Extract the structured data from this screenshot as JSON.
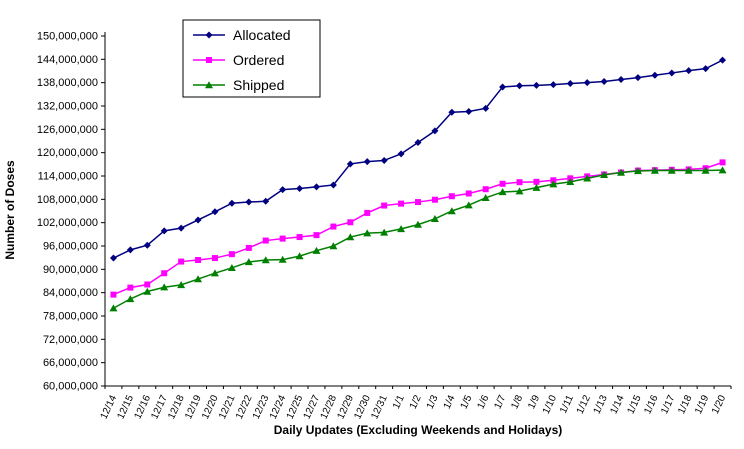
{
  "chart_data": {
    "type": "line",
    "title": "",
    "xlabel": "Daily Updates (Excluding Weekends and Holidays)",
    "ylabel": "Number of Doses",
    "ylim": [
      60000000,
      150000000
    ],
    "ytick_step": 6000000,
    "ytick_format": "comma",
    "grid": false,
    "legend_position": "inside-top-left",
    "categories": [
      "12/14",
      "12/15",
      "12/16",
      "12/17",
      "12/18",
      "12/19",
      "12/20",
      "12/21",
      "12/22",
      "12/23",
      "12/24",
      "12/25",
      "12/27",
      "12/28",
      "12/29",
      "12/30",
      "12/31",
      "1/1",
      "1/2",
      "1/3",
      "1/4",
      "1/5",
      "1/6",
      "1/7",
      "1/8",
      "1/9",
      "1/10",
      "1/11",
      "1/12",
      "1/13",
      "1/14",
      "1/15",
      "1/16",
      "1/17",
      "1/18",
      "1/19",
      "1/20"
    ],
    "series": [
      {
        "name": "Allocated",
        "color": "#000080",
        "marker": "diamond",
        "values": [
          92900000,
          95000000,
          96200000,
          99900000,
          100600000,
          102700000,
          104800000,
          107000000,
          107300000,
          107500000,
          110500000,
          110800000,
          111200000,
          111700000,
          117100000,
          117700000,
          118000000,
          119700000,
          122600000,
          125600000,
          130400000,
          130600000,
          131400000,
          136900000,
          137200000,
          137300000,
          137500000,
          137800000,
          138000000,
          138300000,
          138800000,
          139300000,
          139900000,
          140500000,
          141100000,
          141600000,
          143800000
        ]
      },
      {
        "name": "Ordered",
        "color": "#FF00FF",
        "marker": "square",
        "values": [
          83500000,
          85300000,
          86100000,
          89000000,
          92000000,
          92400000,
          92900000,
          93900000,
          95500000,
          97400000,
          97900000,
          98300000,
          98800000,
          101000000,
          102100000,
          104500000,
          106400000,
          106900000,
          107300000,
          107900000,
          108800000,
          109500000,
          110600000,
          112000000,
          112400000,
          112500000,
          112900000,
          113400000,
          113900000,
          114400000,
          114900000,
          115400000,
          115500000,
          115600000,
          115700000,
          116000000,
          117500000
        ]
      },
      {
        "name": "Shipped",
        "color": "#008000",
        "marker": "triangle",
        "values": [
          80000000,
          82400000,
          84300000,
          85400000,
          86000000,
          87500000,
          89000000,
          90400000,
          91900000,
          92400000,
          92500000,
          93400000,
          94800000,
          96000000,
          98300000,
          99300000,
          99500000,
          100400000,
          101500000,
          103000000,
          105000000,
          106500000,
          108400000,
          109900000,
          110100000,
          111000000,
          111900000,
          112500000,
          113400000,
          114300000,
          114900000,
          115300000,
          115400000,
          115400000,
          115400000,
          115400000,
          115500000
        ]
      }
    ]
  }
}
